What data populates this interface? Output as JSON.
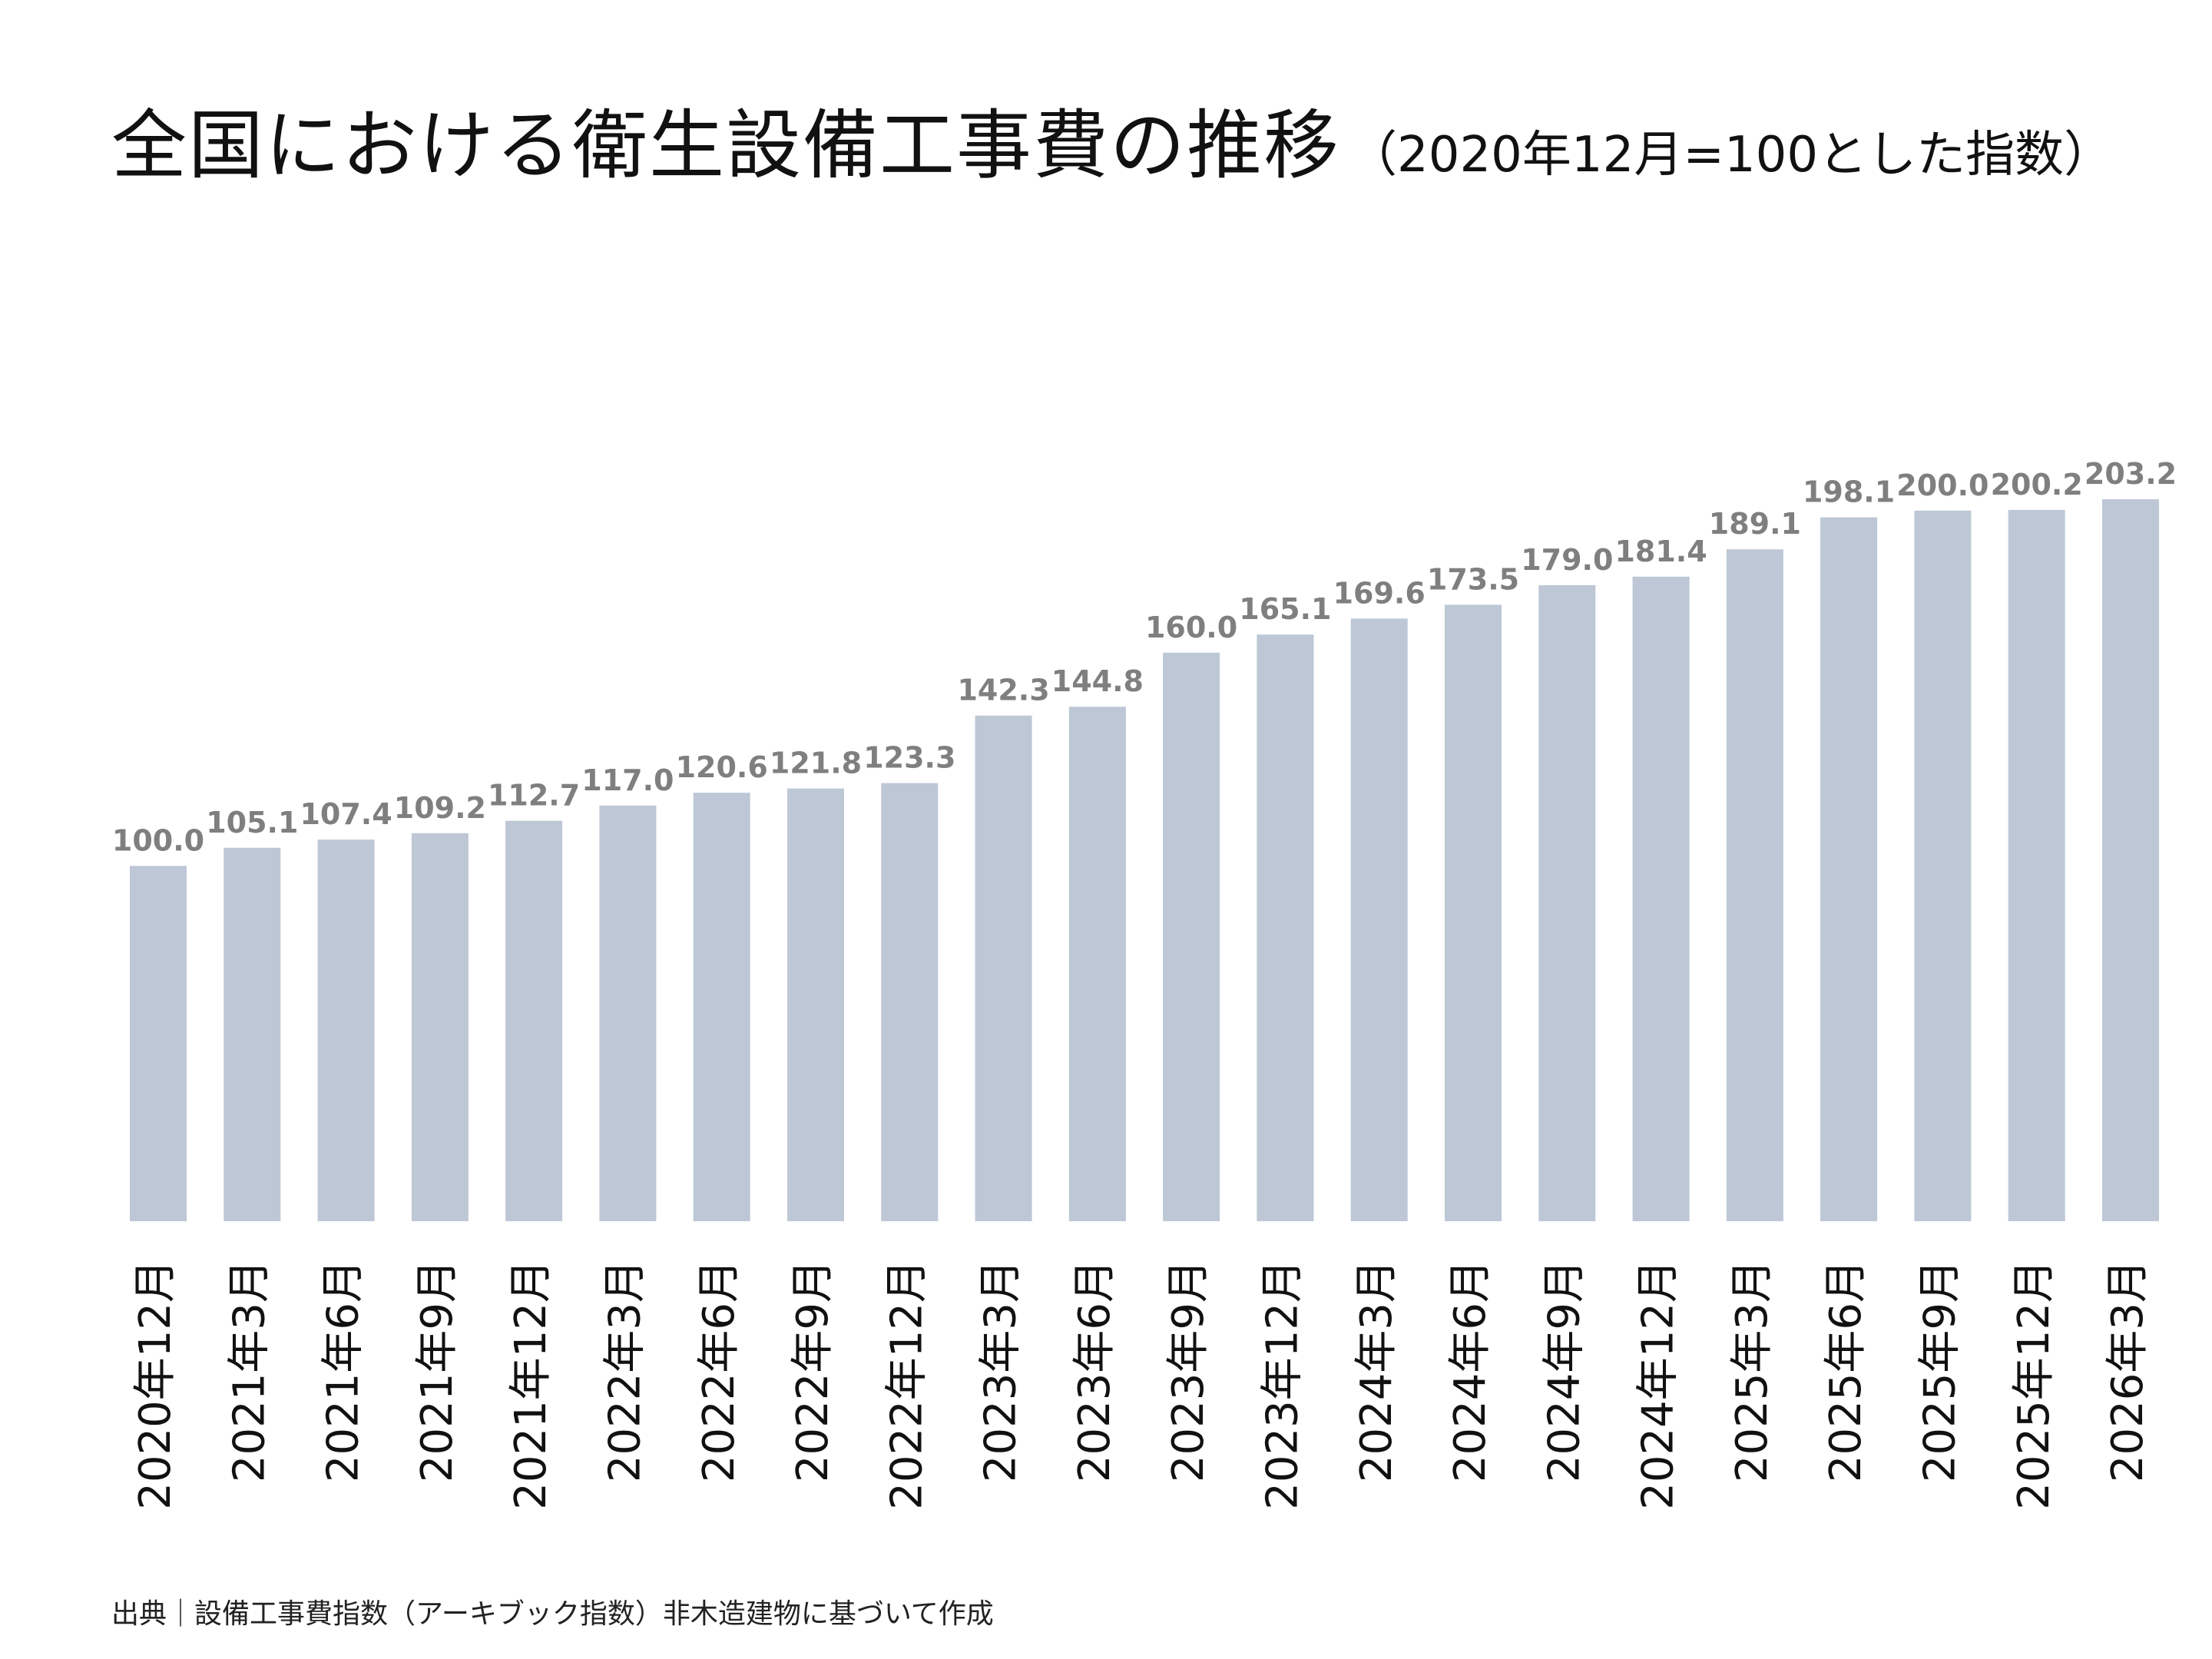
{
  "title": {
    "main": "全国における衛生設備工事費の推移",
    "sub": "（2020年12月=100とした指数）"
  },
  "source": "出典｜設備工事費指数（アーキブック指数）非木造建物に基づいて作成",
  "colors": {
    "bar": "#bdc7d5",
    "value_label": "#7f7f7f",
    "axis_label": "#111111"
  },
  "chart_data": {
    "type": "bar",
    "categories": [
      "2020年12月",
      "2021年3月",
      "2021年6月",
      "2021年9月",
      "2021年12月",
      "2022年3月",
      "2022年6月",
      "2022年9月",
      "2022年12月",
      "2023年3月",
      "2023年6月",
      "2023年9月",
      "2023年12月",
      "2024年3月",
      "2024年6月",
      "2024年9月",
      "2024年12月",
      "2025年3月",
      "2025年6月",
      "2025年9月",
      "2025年12月",
      "2026年3月"
    ],
    "values": [
      100.0,
      105.1,
      107.4,
      109.2,
      112.7,
      117.0,
      120.6,
      121.8,
      123.3,
      142.3,
      144.8,
      160.0,
      165.1,
      169.6,
      173.5,
      179.0,
      181.4,
      189.1,
      198.1,
      200.0,
      200.2,
      203.2
    ],
    "value_labels": [
      "100.0",
      "105.1",
      "107.4",
      "109.2",
      "112.7",
      "117.0",
      "120.6",
      "121.8",
      "123.3",
      "142.3",
      "144.8",
      "160.0",
      "165.1",
      "169.6",
      "173.5",
      "179.0",
      "181.4",
      "189.1",
      "198.1",
      "200.0",
      "200.2",
      "203.2"
    ],
    "title": "全国における衛生設備工事費の推移",
    "subtitle": "（2020年12月=100とした指数）",
    "ylim": [
      0,
      203.2
    ],
    "grid": false,
    "legend": "none"
  }
}
